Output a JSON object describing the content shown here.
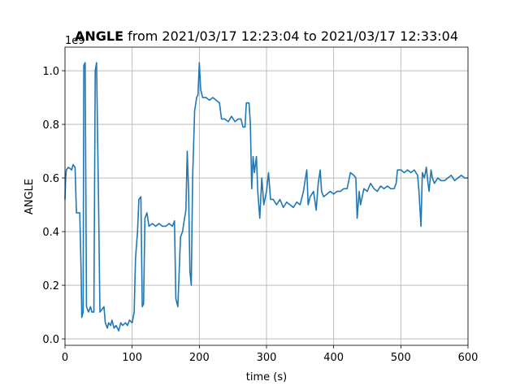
{
  "chart_data": {
    "type": "line",
    "title_bold": "ANGLE",
    "title": "from 2021/03/17 12:23:04 to 2021/03/17 12:33:04",
    "x_label": "time (s)",
    "y_label": "ANGLE",
    "y_offset_text": "1e9",
    "xlim": [
      0,
      600
    ],
    "ylim": [
      -0.024,
      1.088
    ],
    "xticks": [
      0,
      100,
      200,
      300,
      400,
      500,
      600
    ],
    "yticks": [
      {
        "value": 0,
        "label": "0.0"
      },
      0.2,
      0.4,
      0.6,
      0.8,
      {
        "value": 1,
        "label": "1.0"
      }
    ],
    "grid": true,
    "x": [
      0,
      1,
      2,
      5,
      10,
      12,
      15,
      17,
      20,
      22,
      24,
      25,
      27,
      28,
      30,
      32,
      35,
      38,
      40,
      43,
      45,
      47,
      48,
      50,
      52,
      55,
      58,
      60,
      63,
      65,
      68,
      70,
      73,
      76,
      80,
      83,
      86,
      90,
      93,
      96,
      100,
      103,
      105,
      108,
      110,
      113,
      115,
      117,
      119,
      122,
      125,
      130,
      135,
      140,
      145,
      150,
      155,
      160,
      163,
      165,
      168,
      170,
      172,
      175,
      178,
      180,
      182,
      184,
      186,
      188,
      190,
      193,
      196,
      198,
      200,
      202,
      205,
      210,
      215,
      220,
      225,
      230,
      233,
      238,
      243,
      248,
      253,
      258,
      262,
      265,
      268,
      270,
      274,
      276,
      278,
      280,
      282,
      285,
      287,
      290,
      293,
      296,
      300,
      303,
      306,
      310,
      315,
      320,
      325,
      330,
      335,
      340,
      345,
      350,
      355,
      358,
      360,
      362,
      365,
      370,
      374,
      377,
      380,
      382,
      385,
      390,
      395,
      400,
      405,
      410,
      415,
      420,
      425,
      430,
      433,
      435,
      438,
      440,
      445,
      450,
      455,
      460,
      465,
      470,
      475,
      480,
      485,
      490,
      493,
      495,
      500,
      505,
      510,
      515,
      520,
      525,
      527,
      530,
      532,
      535,
      538,
      540,
      542,
      545,
      547,
      550,
      555,
      560,
      565,
      570,
      575,
      580,
      585,
      590,
      595,
      600
    ],
    "series": [
      {
        "name": "ANGLE",
        "color": "#1f77b4",
        "values": [
          0.52,
          0.6,
          0.63,
          0.64,
          0.63,
          0.65,
          0.64,
          0.47,
          0.47,
          0.47,
          0.25,
          0.08,
          0.1,
          1.02,
          1.03,
          0.12,
          0.1,
          0.12,
          0.1,
          0.1,
          1.0,
          1.03,
          0.85,
          0.5,
          0.1,
          0.11,
          0.12,
          0.06,
          0.04,
          0.06,
          0.05,
          0.07,
          0.04,
          0.05,
          0.03,
          0.06,
          0.05,
          0.06,
          0.05,
          0.07,
          0.06,
          0.1,
          0.3,
          0.4,
          0.52,
          0.53,
          0.12,
          0.13,
          0.45,
          0.47,
          0.42,
          0.43,
          0.42,
          0.43,
          0.42,
          0.42,
          0.43,
          0.42,
          0.44,
          0.15,
          0.12,
          0.25,
          0.38,
          0.4,
          0.45,
          0.48,
          0.7,
          0.55,
          0.25,
          0.2,
          0.6,
          0.85,
          0.9,
          0.91,
          1.03,
          0.93,
          0.9,
          0.9,
          0.89,
          0.9,
          0.89,
          0.88,
          0.82,
          0.82,
          0.81,
          0.83,
          0.81,
          0.82,
          0.82,
          0.79,
          0.79,
          0.88,
          0.88,
          0.8,
          0.56,
          0.68,
          0.62,
          0.68,
          0.55,
          0.45,
          0.6,
          0.5,
          0.55,
          0.62,
          0.52,
          0.52,
          0.5,
          0.52,
          0.49,
          0.51,
          0.5,
          0.49,
          0.51,
          0.5,
          0.55,
          0.6,
          0.63,
          0.5,
          0.53,
          0.55,
          0.48,
          0.58,
          0.63,
          0.55,
          0.53,
          0.54,
          0.55,
          0.54,
          0.55,
          0.55,
          0.56,
          0.56,
          0.62,
          0.61,
          0.6,
          0.45,
          0.55,
          0.5,
          0.56,
          0.55,
          0.58,
          0.56,
          0.55,
          0.57,
          0.56,
          0.57,
          0.56,
          0.56,
          0.58,
          0.63,
          0.63,
          0.62,
          0.63,
          0.62,
          0.63,
          0.61,
          0.55,
          0.42,
          0.62,
          0.6,
          0.64,
          0.59,
          0.55,
          0.63,
          0.6,
          0.58,
          0.6,
          0.59,
          0.59,
          0.6,
          0.61,
          0.59,
          0.6,
          0.61,
          0.6,
          0.6
        ]
      }
    ]
  }
}
